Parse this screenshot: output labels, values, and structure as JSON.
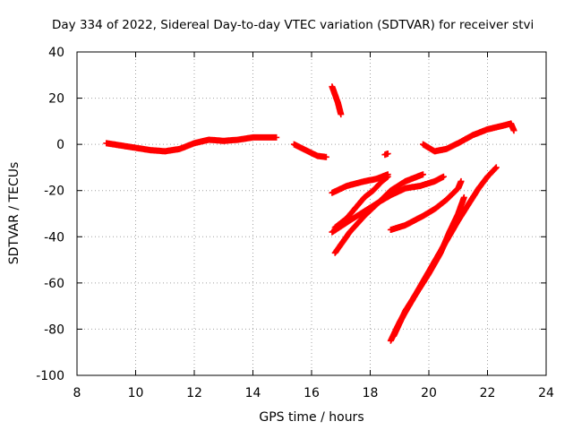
{
  "chart_data": {
    "type": "scatter",
    "title": "Day 334 of 2022, Sidereal Day-to-day VTEC variation (SDTVAR) for receiver stvi",
    "xlabel": "GPS time / hours",
    "ylabel": "SDTVAR / TECUs",
    "xlim": [
      8,
      24
    ],
    "ylim": [
      -100,
      40
    ],
    "xticks": [
      "8",
      "10",
      "12",
      "14",
      "16",
      "18",
      "20",
      "22",
      "24"
    ],
    "yticks": [
      "-100",
      "-80",
      "-60",
      "-40",
      "-20",
      "0",
      "20",
      "40"
    ],
    "grid": true,
    "marker": "plus",
    "color": "#ff0000",
    "series": [
      {
        "points": [
          [
            9.0,
            0.5
          ],
          [
            9.5,
            -0.5
          ],
          [
            10.0,
            -1.5
          ],
          [
            10.5,
            -2.5
          ],
          [
            11.0,
            -3
          ],
          [
            11.5,
            -2
          ],
          [
            12.0,
            0.5
          ],
          [
            12.5,
            2
          ],
          [
            13.0,
            1.5
          ],
          [
            13.5,
            2
          ],
          [
            14.0,
            3
          ],
          [
            14.5,
            3
          ],
          [
            14.8,
            3
          ]
        ]
      },
      {
        "points": [
          [
            15.4,
            0
          ],
          [
            15.8,
            -2.5
          ],
          [
            16.2,
            -5
          ],
          [
            16.5,
            -5.5
          ]
        ]
      },
      {
        "points": [
          [
            16.7,
            25
          ],
          [
            16.9,
            18
          ],
          [
            17.0,
            13
          ]
        ]
      },
      {
        "points": [
          [
            18.5,
            -4.5
          ],
          [
            18.6,
            -4
          ]
        ]
      },
      {
        "points": [
          [
            19.8,
            0
          ],
          [
            20.2,
            -3
          ],
          [
            20.6,
            -2
          ],
          [
            21.0,
            0.5
          ],
          [
            21.5,
            4
          ],
          [
            22.0,
            6.5
          ],
          [
            22.5,
            8
          ],
          [
            22.8,
            9
          ],
          [
            22.9,
            6
          ]
        ]
      },
      {
        "points": [
          [
            16.7,
            -21
          ],
          [
            17.2,
            -18
          ],
          [
            17.8,
            -16
          ],
          [
            18.2,
            -15
          ],
          [
            18.6,
            -13
          ]
        ]
      },
      {
        "points": [
          [
            16.7,
            -38
          ],
          [
            17.3,
            -33
          ],
          [
            17.8,
            -29
          ],
          [
            18.3,
            -25
          ],
          [
            18.7,
            -22
          ],
          [
            19.2,
            -19
          ],
          [
            19.7,
            -18
          ],
          [
            20.2,
            -16
          ],
          [
            20.5,
            -14
          ]
        ]
      },
      {
        "points": [
          [
            16.8,
            -47
          ],
          [
            17.3,
            -38
          ],
          [
            17.8,
            -31
          ],
          [
            18.3,
            -25
          ],
          [
            18.7,
            -20
          ],
          [
            19.2,
            -16
          ],
          [
            19.8,
            -13
          ]
        ]
      },
      {
        "points": [
          [
            16.8,
            -36
          ],
          [
            17.2,
            -32
          ],
          [
            17.6,
            -26
          ],
          [
            17.8,
            -23
          ],
          [
            18.1,
            -20
          ],
          [
            18.4,
            -16
          ],
          [
            18.6,
            -14
          ]
        ]
      },
      {
        "points": [
          [
            18.7,
            -37
          ],
          [
            19.2,
            -35
          ],
          [
            19.8,
            -31
          ],
          [
            20.2,
            -28
          ],
          [
            20.6,
            -24
          ],
          [
            21.0,
            -19
          ],
          [
            21.1,
            -16
          ]
        ]
      },
      {
        "points": [
          [
            18.7,
            -85
          ],
          [
            19.0,
            -77
          ],
          [
            19.5,
            -66
          ],
          [
            20.0,
            -55
          ],
          [
            20.5,
            -44
          ],
          [
            21.0,
            -33
          ],
          [
            21.4,
            -25
          ],
          [
            21.7,
            -19
          ],
          [
            22.0,
            -14
          ],
          [
            22.3,
            -10
          ]
        ]
      },
      {
        "points": [
          [
            18.8,
            -83
          ],
          [
            19.2,
            -72
          ],
          [
            19.6,
            -64
          ],
          [
            20.0,
            -56
          ],
          [
            20.4,
            -47
          ],
          [
            20.7,
            -38
          ],
          [
            21.0,
            -30
          ],
          [
            21.2,
            -23
          ]
        ]
      }
    ]
  }
}
